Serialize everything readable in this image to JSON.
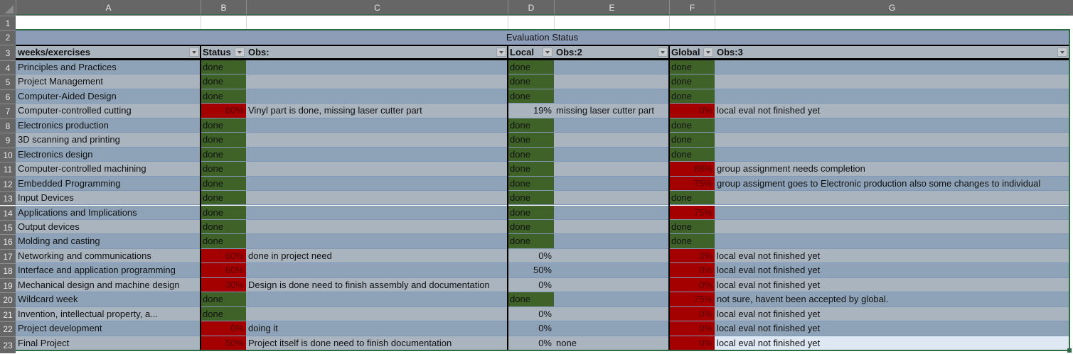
{
  "columns": [
    "A",
    "B",
    "C",
    "D",
    "E",
    "F",
    "G"
  ],
  "row_numbers": [
    "1",
    "2",
    "3",
    "4",
    "5",
    "6",
    "7",
    "8",
    "9",
    "10",
    "11",
    "12",
    "13",
    "14",
    "15",
    "16",
    "17",
    "18",
    "19",
    "20",
    "21",
    "22",
    "23"
  ],
  "table_title": "Evaluation Status",
  "headers": {
    "weeks": "weeks/exercises",
    "status": "Status",
    "obs": "Obs:",
    "local": "Local",
    "obs2": "Obs:2",
    "global": "Global",
    "obs3": "Obs:3"
  },
  "colors": {
    "done_green": "#3e6228",
    "incomplete_red": "#a40000",
    "band_light": "#aab4bf",
    "band_dark": "#8fa3b8",
    "title_band": "#8d9db7",
    "selection_border": "#2f6b45"
  },
  "rows": [
    {
      "week": " Principles and Practices",
      "status": "done",
      "obs": "",
      "local": "done",
      "obs2": "",
      "global": "done",
      "obs3": ""
    },
    {
      "week": " Project Management",
      "status": "done",
      "obs": "",
      "local": "done",
      "obs2": "",
      "global": "done",
      "obs3": ""
    },
    {
      "week": " Computer-Aided Design",
      "status": "done",
      "obs": "",
      "local": "done",
      "obs2": "",
      "global": "done",
      "obs3": ""
    },
    {
      "week": "Computer-controlled cutting",
      "status": "60%",
      "obs": "Vinyl part is done, missing laser cutter part",
      "local": "19%",
      "obs2": "missing laser cutter part",
      "global": "0%",
      "obs3": "local eval  not finished yet"
    },
    {
      "week": "Electronics production",
      "status": "done",
      "obs": "",
      "local": "done",
      "obs2": "",
      "global": "done",
      "obs3": ""
    },
    {
      "week": " 3D scanning and printing",
      "status": "done",
      "obs": "",
      "local": "done",
      "obs2": "",
      "global": "done",
      "obs3": ""
    },
    {
      "week": " Electronics design",
      "status": "done",
      "obs": "",
      "local": "done",
      "obs2": "",
      "global": "done",
      "obs3": ""
    },
    {
      "week": "Computer-controlled machining",
      "status": "done",
      "obs": "",
      "local": "done",
      "obs2": "",
      "global": "88%",
      "obs3": "group assignment needs completion"
    },
    {
      "week": " Embedded Programming",
      "status": "done",
      "obs": "",
      "local": "done",
      "obs2": "",
      "global": "75%",
      "obs3": "group assigment goes to Electronic production also some changes to individual"
    },
    {
      "week": " Input Devices",
      "status": "done",
      "obs": "",
      "local": "done",
      "obs2": "",
      "global": "done",
      "obs3": ""
    },
    {
      "week": " Applications and Implications",
      "status": "done",
      "obs": "",
      "local": "done",
      "obs2": "",
      "global": "75%",
      "obs3": ""
    },
    {
      "week": " Output devices",
      "status": "done",
      "obs": "",
      "local": "done",
      "obs2": "",
      "global": "done",
      "obs3": ""
    },
    {
      "week": " Molding and casting",
      "status": "done",
      "obs": "",
      "local": "done",
      "obs2": "",
      "global": "done",
      "obs3": ""
    },
    {
      "week": " Networking and communications",
      "status": "60%",
      "obs": "done in project need",
      "local": "0%",
      "obs2": "",
      "global": "0%",
      "obs3": "local eval  not finished yet"
    },
    {
      "week": " Interface and application programming",
      "status": "60%",
      "obs": "",
      "local": "50%",
      "obs2": "",
      "global": "0%",
      "obs3": "local eval  not finished yet"
    },
    {
      "week": " Mechanical design and machine design",
      "status": "30%",
      "obs": "Design is done need to finish assembly and documentation",
      "local": "0%",
      "obs2": "",
      "global": "0%",
      "obs3": "local eval  not finished yet"
    },
    {
      "week": " Wildcard week",
      "status": "done",
      "obs": "",
      "local": "done",
      "obs2": "",
      "global": "75%",
      "obs3": "not sure, havent been accepted by global."
    },
    {
      "week": " Invention, intellectual property, a...",
      "status": "done",
      "obs": "",
      "local": "0%",
      "obs2": "",
      "global": "0%",
      "obs3": "local eval  not finished yet"
    },
    {
      "week": " Project development",
      "status": "0%",
      "obs": "doing it",
      "local": "0%",
      "obs2": "",
      "global": "0%",
      "obs3": "local eval  not finished yet"
    },
    {
      "week": " Final Project",
      "status": "50%",
      "obs": "Project itself is done need to finish documentation",
      "local": "0%",
      "obs2": "none",
      "global": "0%",
      "obs3": "local eval  not finished yet"
    }
  ]
}
